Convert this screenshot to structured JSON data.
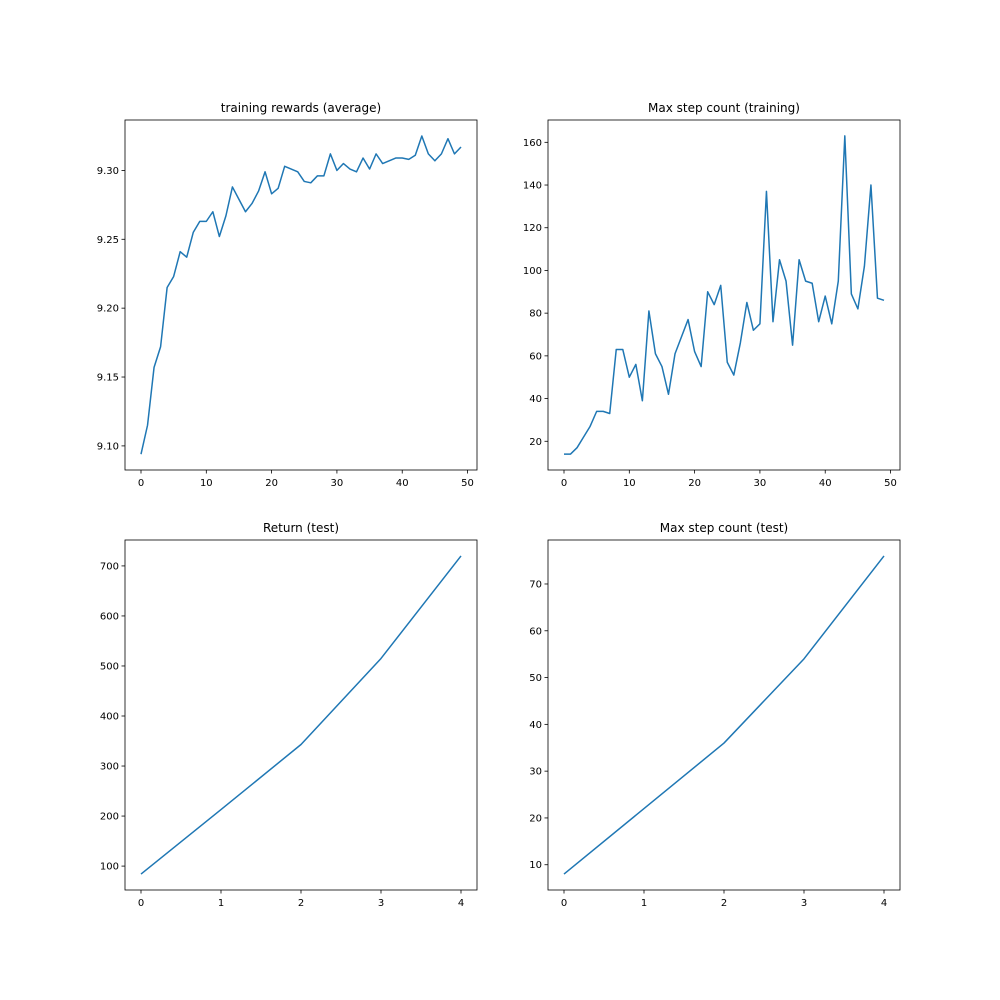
{
  "chart_data": [
    {
      "type": "line",
      "title": "training rewards (average)",
      "color": "#1f77b4",
      "x": [
        0,
        1,
        2,
        3,
        4,
        5,
        6,
        7,
        8,
        9,
        10,
        11,
        12,
        13,
        14,
        15,
        16,
        17,
        18,
        19,
        20,
        21,
        22,
        23,
        24,
        25,
        26,
        27,
        28,
        29,
        30,
        31,
        32,
        33,
        34,
        35,
        36,
        37,
        38,
        39,
        40,
        41,
        42,
        43,
        44,
        45,
        46,
        47,
        48,
        49
      ],
      "values": [
        9.094,
        9.115,
        9.157,
        9.172,
        9.215,
        9.223,
        9.241,
        9.237,
        9.255,
        9.263,
        9.263,
        9.27,
        9.252,
        9.267,
        9.288,
        9.279,
        9.27,
        9.276,
        9.285,
        9.299,
        9.283,
        9.287,
        9.303,
        9.301,
        9.299,
        9.292,
        9.291,
        9.296,
        9.296,
        9.312,
        9.3,
        9.305,
        9.301,
        9.299,
        9.309,
        9.301,
        9.312,
        9.305,
        9.307,
        9.309,
        9.309,
        9.308,
        9.311,
        9.325,
        9.312,
        9.307,
        9.312,
        9.323,
        9.312,
        9.317
      ],
      "xlim": [
        -2.45,
        51.45
      ],
      "ylim": [
        9.0825,
        9.3366
      ],
      "xticks": [
        0,
        10,
        20,
        30,
        40,
        50
      ],
      "yticks": [
        {
          "value": 9.1,
          "label": "9.10"
        },
        9.15,
        {
          "value": 9.2,
          "label": "9.20"
        },
        9.25,
        {
          "value": 9.3,
          "label": "9.30"
        }
      ]
    },
    {
      "type": "line",
      "title": "Max step count (training)",
      "color": "#1f77b4",
      "x": [
        0,
        1,
        2,
        3,
        4,
        5,
        6,
        7,
        8,
        9,
        10,
        11,
        12,
        13,
        14,
        15,
        16,
        17,
        18,
        19,
        20,
        21,
        22,
        23,
        24,
        25,
        26,
        27,
        28,
        29,
        30,
        31,
        32,
        33,
        34,
        35,
        36,
        37,
        38,
        39,
        40,
        41,
        42,
        43,
        44,
        45,
        46,
        47,
        48,
        49
      ],
      "values": [
        14,
        14,
        17,
        22,
        27,
        34,
        34,
        33,
        63,
        63,
        50,
        56,
        39,
        81,
        61,
        55,
        42,
        61,
        69,
        77,
        62,
        55,
        90,
        84,
        93,
        57,
        51,
        66,
        85,
        72,
        75,
        137,
        76,
        105,
        95,
        65,
        105,
        95,
        94,
        76,
        88,
        75,
        95,
        163,
        89,
        82,
        102,
        140,
        87,
        86
      ],
      "xlim": [
        -2.45,
        51.45
      ],
      "ylim": [
        6.55,
        170.45
      ],
      "xticks": [
        0,
        10,
        20,
        30,
        40,
        50
      ],
      "yticks": [
        20,
        40,
        60,
        80,
        100,
        120,
        140,
        160
      ]
    },
    {
      "type": "line",
      "title": "Return (test)",
      "color": "#1f77b4",
      "x": [
        0,
        1,
        2,
        3,
        4
      ],
      "values": [
        84,
        213,
        343,
        515,
        720
      ],
      "xlim": [
        -0.2,
        4.2
      ],
      "ylim": [
        52.2,
        751.8
      ],
      "xticks": [
        0,
        1,
        2,
        3,
        4
      ],
      "yticks": [
        100,
        200,
        300,
        400,
        500,
        600,
        700
      ]
    },
    {
      "type": "line",
      "title": "Max step count (test)",
      "color": "#1f77b4",
      "x": [
        0,
        1,
        2,
        3,
        4
      ],
      "values": [
        8,
        22,
        36,
        54,
        76
      ],
      "xlim": [
        -0.2,
        4.2
      ],
      "ylim": [
        4.6,
        79.4
      ],
      "xticks": [
        0,
        1,
        2,
        3,
        4
      ],
      "yticks": [
        10,
        20,
        30,
        40,
        50,
        60,
        70
      ]
    }
  ]
}
